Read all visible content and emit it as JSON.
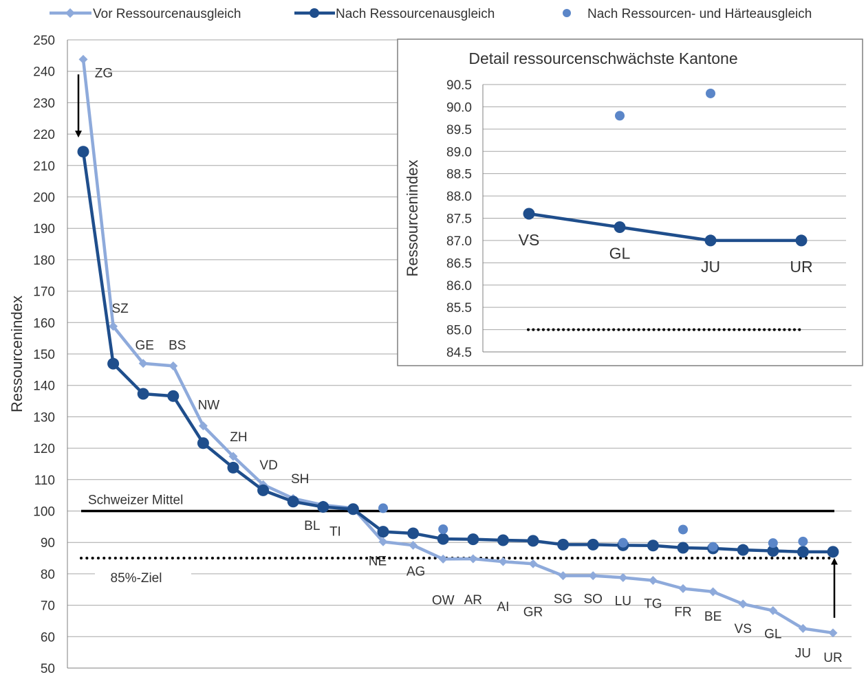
{
  "chart_data": [
    {
      "type": "line",
      "ylabel": "Ressourcenindex",
      "ylim": [
        50,
        250
      ],
      "yticks": [
        50,
        60,
        70,
        80,
        90,
        100,
        110,
        120,
        130,
        140,
        150,
        160,
        170,
        180,
        190,
        200,
        210,
        220,
        230,
        240,
        250
      ],
      "grid": true,
      "legend_position": "top",
      "categories": [
        "ZG",
        "SZ",
        "GE",
        "BS",
        "NW",
        "ZH",
        "VD",
        "SH",
        "BL",
        "TI",
        "NE",
        "AG",
        "OW",
        "AR",
        "AI",
        "GR",
        "SG",
        "SO",
        "LU",
        "TG",
        "FR",
        "BE",
        "VS",
        "GL",
        "JU",
        "UR"
      ],
      "series": [
        {
          "name": "Vor Ressourcenausgleich",
          "color": "#8EAADB",
          "marker": "diamond",
          "values": [
            243.8,
            158.8,
            147.0,
            146.2,
            127.1,
            117.4,
            108.4,
            104.0,
            101.9,
            100.9,
            90.2,
            89.1,
            84.7,
            84.8,
            83.9,
            83.2,
            79.4,
            79.4,
            78.8,
            77.9,
            75.3,
            74.3,
            70.4,
            68.3,
            62.6,
            61.2
          ]
        },
        {
          "name": "Nach Ressourcenausgleich",
          "color": "#1F4E8C",
          "marker": "circle",
          "values": [
            214.4,
            146.9,
            137.3,
            136.6,
            121.6,
            113.8,
            106.6,
            103.0,
            101.3,
            100.6,
            93.4,
            92.9,
            91.1,
            91.0,
            90.7,
            90.5,
            89.3,
            89.3,
            89.1,
            89.0,
            88.3,
            88.1,
            87.6,
            87.3,
            87.0,
            87.0
          ]
        },
        {
          "name": "Nach Ressourcen- und Härteausgleich",
          "color": "#5B86C8",
          "marker": "circle-only",
          "points": [
            {
              "category": "NE",
              "value": 100.9
            },
            {
              "category": "OW",
              "value": 94.2
            },
            {
              "category": "LU",
              "value": 89.9
            },
            {
              "category": "FR",
              "value": 94.1
            },
            {
              "category": "BE",
              "value": 88.6
            },
            {
              "category": "GL",
              "value": 89.8
            },
            {
              "category": "JU",
              "value": 90.3
            }
          ]
        }
      ],
      "reference_lines": [
        {
          "label": "Schweizer Mittel",
          "value": 100,
          "style": "solid"
        },
        {
          "label": "85%-Ziel",
          "value": 85,
          "style": "dotted"
        }
      ],
      "arrows": [
        {
          "category": "ZG",
          "from": 239,
          "to": 220,
          "direction": "down"
        },
        {
          "category": "UR",
          "from": 66,
          "to": 84,
          "direction": "up"
        }
      ]
    },
    {
      "type": "line",
      "title": "Detail ressourcenschwächste Kantone",
      "ylabel": "Ressourcenindex",
      "ylim": [
        84.5,
        90.5
      ],
      "yticks": [
        "84.5",
        "85.0",
        "85.5",
        "86.0",
        "86.5",
        "87.0",
        "87.5",
        "88.0",
        "88.5",
        "89.0",
        "89.5",
        "90.0",
        "90.5"
      ],
      "grid": true,
      "categories": [
        "VS",
        "GL",
        "JU",
        "UR"
      ],
      "series": [
        {
          "name": "Nach Ressourcenausgleich",
          "color": "#1F4E8C",
          "values": [
            87.6,
            87.3,
            87.0,
            87.0
          ]
        },
        {
          "name": "Nach Ressourcen- und Härteausgleich",
          "color": "#5B86C8",
          "points": [
            {
              "category": "GL",
              "value": 89.8
            },
            {
              "category": "JU",
              "value": 90.3
            }
          ]
        }
      ],
      "reference_lines": [
        {
          "label": "",
          "value": 85.0,
          "style": "dotted"
        }
      ]
    }
  ]
}
